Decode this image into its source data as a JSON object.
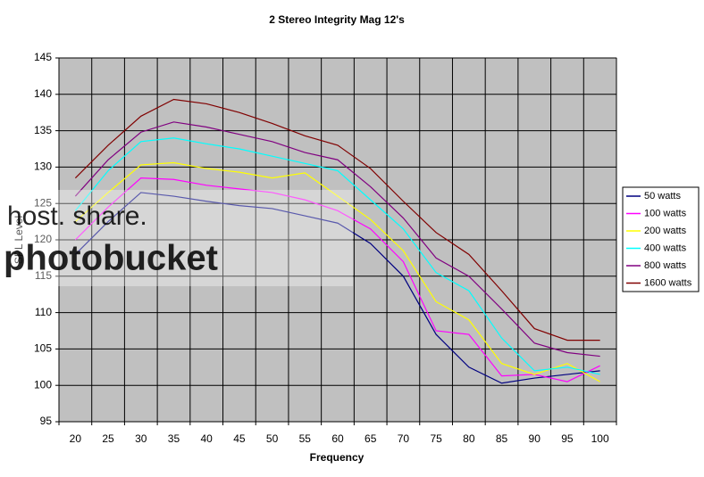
{
  "chart_data": {
    "type": "line",
    "title": "2 Stereo Integrity Mag 12's",
    "x_label": "Frequency",
    "y_label": "SPL Level",
    "categories": [
      "20",
      "25",
      "30",
      "35",
      "40",
      "45",
      "50",
      "55",
      "60",
      "65",
      "70",
      "75",
      "80",
      "85",
      "90",
      "95",
      "100"
    ],
    "series": [
      {
        "name": "50 watts",
        "color": "#000080",
        "values": [
          118,
          122.5,
          126.5,
          126,
          125.3,
          124.7,
          124.3,
          123.3,
          122.3,
          119.5,
          115,
          107,
          102.5,
          100.3,
          101,
          101.5,
          102
        ]
      },
      {
        "name": "100 watts",
        "color": "#ff00ff",
        "values": [
          120,
          124.5,
          128.5,
          128.3,
          127.5,
          127,
          126.5,
          125.5,
          124,
          121.5,
          117,
          107.5,
          107,
          101.3,
          101.5,
          100.5,
          102.7
        ]
      },
      {
        "name": "200 watts",
        "color": "#ffff00",
        "values": [
          122.5,
          126.5,
          130.3,
          130.6,
          129.8,
          129.3,
          128.5,
          129.2,
          126,
          122.8,
          118.5,
          111.5,
          109,
          103,
          101.5,
          103,
          100.5
        ]
      },
      {
        "name": "400 watts",
        "color": "#00ffff",
        "values": [
          124,
          129.5,
          133.5,
          134,
          133.2,
          132.5,
          131.5,
          130.5,
          129.5,
          125.5,
          121.5,
          115.5,
          113,
          106.5,
          102,
          102.5,
          101.5
        ]
      },
      {
        "name": "800 watts",
        "color": "#800080",
        "values": [
          126,
          131,
          134.8,
          136.2,
          135.5,
          134.5,
          133.5,
          132,
          131,
          127.3,
          123,
          117.5,
          115,
          110.5,
          105.8,
          104.5,
          104
        ]
      },
      {
        "name": "1600 watts",
        "color": "#800000",
        "values": [
          128.5,
          133,
          137,
          139.3,
          138.7,
          137.5,
          136,
          134.3,
          133,
          129.8,
          125.3,
          121,
          118,
          113,
          107.8,
          106.2,
          106.2
        ]
      }
    ],
    "ylim": [
      95,
      145
    ],
    "yticks": [
      95,
      100,
      105,
      110,
      115,
      120,
      125,
      130,
      135,
      140,
      145
    ],
    "grid": true,
    "legend": "right"
  },
  "watermark": {
    "tagline": "host. share.",
    "brand": "photobucket"
  }
}
